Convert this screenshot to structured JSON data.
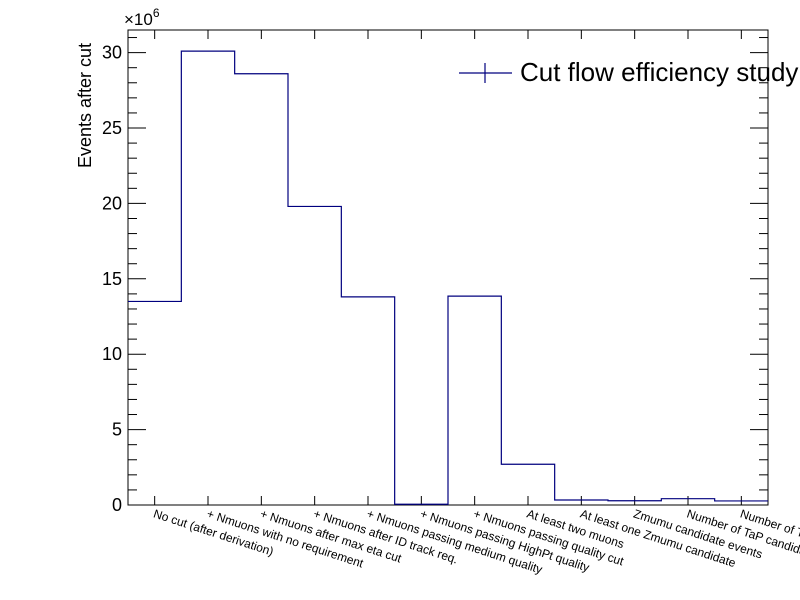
{
  "chart_data": {
    "type": "bar",
    "style": "step-histogram",
    "categories": [
      "No cut (after derivation)",
      "+ Nmuons with no requirement",
      "+ Nmuons after max eta cut",
      "+ Nmuons after ID track req.",
      "+ Nmuons passing medium quality",
      "+ Nmuons passing HighPt quality",
      "+ Nmuons passing quality cut",
      "At least two muons",
      "At least one Zmumu candidate",
      "Zmumu candidate events",
      "Number of TaP candidates",
      "Number of TaP pairs"
    ],
    "series": [
      {
        "name": "Cut flow efficiency study",
        "values": [
          13500000,
          30100000,
          28600000,
          19800000,
          13800000,
          50000,
          13850000,
          2700000,
          330000,
          280000,
          420000,
          270000
        ],
        "color": "#00007f"
      }
    ],
    "ylabel": "Events after cut",
    "y_exponent_label": "×10",
    "y_exponent_power": "6",
    "ylim": [
      0,
      31500000
    ],
    "yticks": [
      0,
      5,
      10,
      15,
      20,
      25,
      30
    ],
    "grid": false,
    "legend_position": "top-right"
  }
}
